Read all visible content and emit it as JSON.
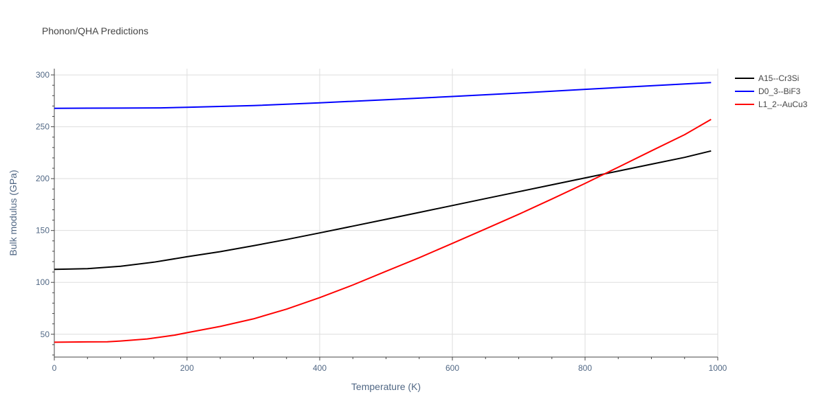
{
  "chart_data": {
    "type": "line",
    "title": "Phonon/QHA Predictions",
    "xlabel": "Temperature (K)",
    "ylabel": "Bulk modulus (GPa)",
    "xlim": [
      0,
      1000
    ],
    "ylim": [
      28,
      306
    ],
    "xticks": [
      0,
      200,
      400,
      600,
      800,
      1000
    ],
    "xtick_labels": [
      "0",
      "200",
      "400",
      "600",
      "800",
      "1000"
    ],
    "yticks": [
      50,
      100,
      150,
      200,
      250,
      300
    ],
    "ytick_labels": [
      "50",
      "100",
      "150",
      "200",
      "250",
      "300"
    ],
    "grid": true,
    "legend_position": "top-right",
    "series": [
      {
        "name": "A15--Cr3Si",
        "color": "#000000",
        "x": [
          0,
          20,
          50,
          100,
          150,
          200,
          250,
          300,
          350,
          400,
          450,
          500,
          550,
          600,
          650,
          700,
          750,
          800,
          850,
          900,
          950,
          990
        ],
        "y": [
          112.5,
          112.8,
          113.2,
          115.5,
          119.5,
          124.7,
          129.6,
          135.3,
          141.3,
          147.7,
          154.2,
          160.8,
          167.4,
          174.1,
          180.8,
          187.4,
          194.1,
          200.7,
          207.3,
          213.9,
          220.5,
          226.7
        ]
      },
      {
        "name": "D0_3--BiF3",
        "color": "#0000ff",
        "x": [
          0,
          100,
          160,
          200,
          300,
          400,
          500,
          600,
          700,
          800,
          900,
          990
        ],
        "y": [
          267.8,
          268,
          268.2,
          268.8,
          270.4,
          273.1,
          276.1,
          279.2,
          282.5,
          286.1,
          289.5,
          292.6
        ]
      },
      {
        "name": "L1_2--AuCu3",
        "color": "#ff0000",
        "x": [
          0,
          25,
          50,
          80,
          100,
          140,
          180,
          200,
          250,
          300,
          350,
          400,
          450,
          500,
          550,
          600,
          650,
          700,
          750,
          800,
          850,
          900,
          950,
          990
        ],
        "y": [
          42.3,
          42.5,
          42.6,
          42.7,
          43.5,
          45.5,
          49,
          51.5,
          57.5,
          64.8,
          74.2,
          85.3,
          97.5,
          110.7,
          123.8,
          137.6,
          151.6,
          165.6,
          180.4,
          195.4,
          211,
          226.8,
          242.4,
          257.1
        ]
      }
    ]
  }
}
